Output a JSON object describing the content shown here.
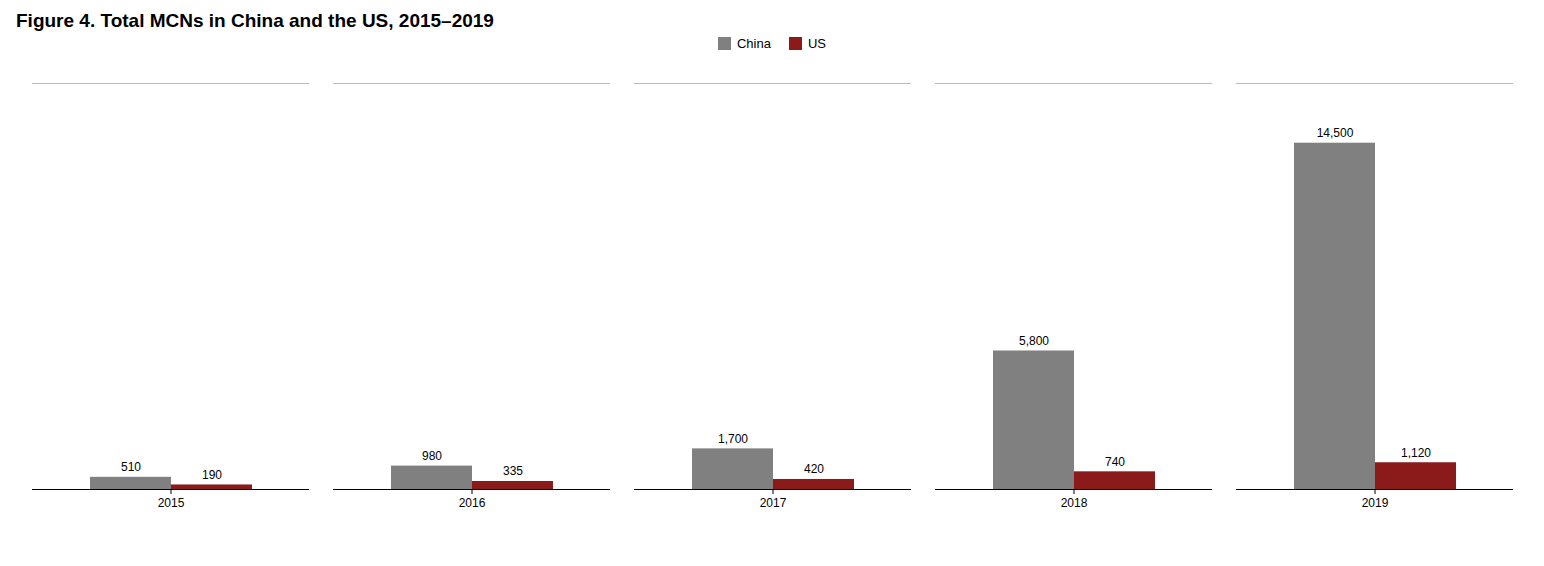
{
  "chart_data": {
    "type": "bar",
    "title": "Figure 4. Total MCNs in China and the US, 2015–2019",
    "categories": [
      "2015",
      "2016",
      "2017",
      "2018",
      "2019"
    ],
    "series": [
      {
        "name": "China",
        "color": "#808080",
        "values": [
          510,
          980,
          1700,
          5800,
          14500
        ],
        "value_labels": [
          "510",
          "980",
          "1,700",
          "5,800",
          "14,500"
        ]
      },
      {
        "name": "US",
        "color": "#8B1A1A",
        "values": [
          190,
          335,
          420,
          740,
          1120
        ],
        "value_labels": [
          "190",
          "335",
          "420",
          "740",
          "1,120"
        ]
      }
    ],
    "ylim": [
      0,
      17000
    ],
    "data_labels": true,
    "tick_labels": "x",
    "legend": "top",
    "grid": false
  }
}
